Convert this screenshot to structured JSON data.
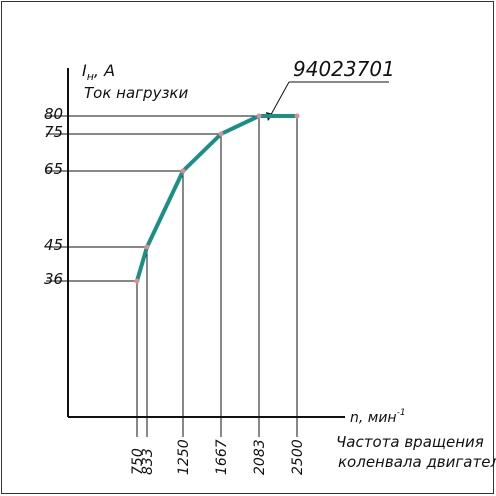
{
  "chart_data": {
    "type": "line",
    "title": "",
    "part_number": "94023701",
    "ylabel_symbol": "Iн, А",
    "ylabel_sub": "н",
    "ylabel_unit": ", А",
    "ylabel_text": "Ток нагрузки",
    "xlabel_symbol": "n, мин⁻¹",
    "xlabel_text_line1": "Частота вращения",
    "xlabel_text_line2": "коленвала двигателя",
    "x": [
      750,
      833,
      1250,
      1667,
      2083,
      2500
    ],
    "y": [
      36,
      45,
      65,
      75,
      80,
      80
    ],
    "x_tick_labels": [
      "750",
      "833",
      "1250",
      "1667",
      "2083",
      "2500"
    ],
    "y_tick_labels": [
      "36",
      "45",
      "65",
      "75",
      "80"
    ],
    "y_tick_values": [
      36,
      45,
      65,
      75,
      80
    ],
    "grid": false,
    "colors": {
      "curve": "#1a8f86",
      "points": "#e08a94",
      "lines": "#111111"
    }
  }
}
